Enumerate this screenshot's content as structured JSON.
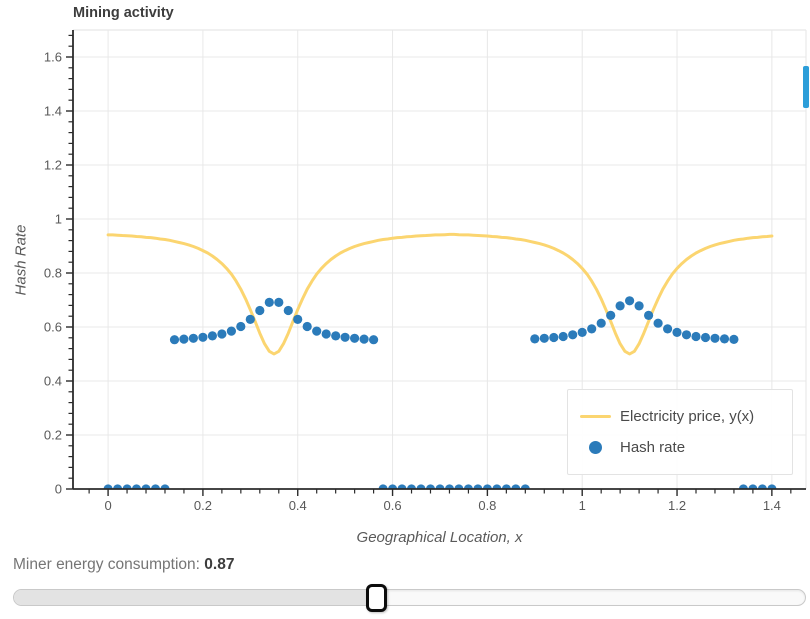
{
  "title": "Mining activity",
  "slider": {
    "label": "Miner energy consumption: ",
    "value": "0.87"
  },
  "colors": {
    "electricity_line": "#fbd570",
    "hash_dot": "#2b7bba",
    "scroll_indicator": "#2c9ed9",
    "grid": "#e8e8e8",
    "axis": "#2b2b2b",
    "tick_label": "#595959"
  },
  "chart_data": {
    "type": "line",
    "title": "Mining activity",
    "xlabel": "Geographical Location, x",
    "ylabel": "Hash Rate",
    "xlim": [
      -0.074,
      1.472
    ],
    "ylim": [
      0,
      1.7
    ],
    "grid": true,
    "x_ticks": {
      "values": [
        0,
        0.2,
        0.4,
        0.6,
        0.8,
        1,
        1.2,
        1.4
      ],
      "labels": [
        "0",
        "0.2",
        "0.4",
        "0.6",
        "0.8",
        "1",
        "1.2",
        "1.4"
      ]
    },
    "y_ticks": {
      "values": [
        0,
        0.2,
        0.4,
        0.6,
        0.8,
        1,
        1.2,
        1.4,
        1.6
      ],
      "labels": [
        "0",
        "0.2",
        "0.4",
        "0.6",
        "0.8",
        "1",
        "1.2",
        "1.4",
        "1.6"
      ]
    },
    "minor_tick_step": 0.04,
    "legend": {
      "position": "bottom-right",
      "entries": [
        {
          "label": "Electricity price, y(x)",
          "type": "line",
          "color": "#fbd570"
        },
        {
          "label": "Hash rate",
          "type": "circle",
          "color": "#2b7bba"
        }
      ]
    },
    "series": [
      {
        "name": "Electricity price, y(x)",
        "type": "line",
        "color": "#fbd570",
        "x_start": 0,
        "x_step": 0.01,
        "y": [
          0.941,
          0.941,
          0.94,
          0.939,
          0.938,
          0.937,
          0.935,
          0.934,
          0.932,
          0.931,
          0.929,
          0.926,
          0.924,
          0.921,
          0.917,
          0.913,
          0.909,
          0.904,
          0.898,
          0.891,
          0.883,
          0.874,
          0.863,
          0.85,
          0.835,
          0.817,
          0.796,
          0.77,
          0.74,
          0.704,
          0.664,
          0.621,
          0.577,
          0.538,
          0.51,
          0.5,
          0.51,
          0.538,
          0.577,
          0.621,
          0.664,
          0.704,
          0.74,
          0.77,
          0.796,
          0.817,
          0.835,
          0.85,
          0.863,
          0.874,
          0.883,
          0.891,
          0.898,
          0.904,
          0.909,
          0.913,
          0.917,
          0.921,
          0.924,
          0.926,
          0.929,
          0.931,
          0.932,
          0.934,
          0.935,
          0.937,
          0.938,
          0.939,
          0.94,
          0.941,
          0.941,
          0.942,
          0.943,
          0.943,
          0.942,
          0.941,
          0.941,
          0.94,
          0.939,
          0.938,
          0.937,
          0.935,
          0.934,
          0.932,
          0.931,
          0.929,
          0.926,
          0.924,
          0.921,
          0.917,
          0.913,
          0.909,
          0.904,
          0.898,
          0.891,
          0.883,
          0.874,
          0.863,
          0.85,
          0.835,
          0.817,
          0.796,
          0.77,
          0.74,
          0.704,
          0.664,
          0.621,
          0.577,
          0.538,
          0.51,
          0.5,
          0.51,
          0.538,
          0.577,
          0.621,
          0.664,
          0.704,
          0.74,
          0.77,
          0.796,
          0.817,
          0.835,
          0.85,
          0.863,
          0.874,
          0.883,
          0.891,
          0.898,
          0.904,
          0.909,
          0.913,
          0.917,
          0.921,
          0.924,
          0.926,
          0.929,
          0.931,
          0.932,
          0.934,
          0.935,
          0.937
        ]
      },
      {
        "name": "Hash rate",
        "type": "scatter",
        "color": "#2b7bba",
        "marker_radius": 4.6,
        "points": [
          [
            0.0,
            0
          ],
          [
            0.02,
            0
          ],
          [
            0.04,
            0
          ],
          [
            0.06,
            0
          ],
          [
            0.08,
            0
          ],
          [
            0.1,
            0
          ],
          [
            0.12,
            0
          ],
          [
            0.14,
            0.553
          ],
          [
            0.16,
            0.555
          ],
          [
            0.18,
            0.558
          ],
          [
            0.2,
            0.562
          ],
          [
            0.22,
            0.567
          ],
          [
            0.24,
            0.574
          ],
          [
            0.26,
            0.585
          ],
          [
            0.28,
            0.602
          ],
          [
            0.3,
            0.628
          ],
          [
            0.32,
            0.661
          ],
          [
            0.34,
            0.691
          ],
          [
            0.36,
            0.691
          ],
          [
            0.38,
            0.661
          ],
          [
            0.4,
            0.628
          ],
          [
            0.42,
            0.602
          ],
          [
            0.44,
            0.585
          ],
          [
            0.46,
            0.574
          ],
          [
            0.48,
            0.567
          ],
          [
            0.5,
            0.562
          ],
          [
            0.52,
            0.558
          ],
          [
            0.54,
            0.555
          ],
          [
            0.56,
            0.553
          ],
          [
            0.58,
            0
          ],
          [
            0.6,
            0
          ],
          [
            0.62,
            0
          ],
          [
            0.64,
            0
          ],
          [
            0.66,
            0
          ],
          [
            0.68,
            0
          ],
          [
            0.7,
            0
          ],
          [
            0.72,
            0
          ],
          [
            0.74,
            0
          ],
          [
            0.76,
            0
          ],
          [
            0.78,
            0
          ],
          [
            0.8,
            0
          ],
          [
            0.82,
            0
          ],
          [
            0.84,
            0
          ],
          [
            0.86,
            0
          ],
          [
            0.88,
            0
          ],
          [
            0.9,
            0.556
          ],
          [
            0.92,
            0.558
          ],
          [
            0.94,
            0.561
          ],
          [
            0.96,
            0.565
          ],
          [
            0.98,
            0.571
          ],
          [
            1.0,
            0.58
          ],
          [
            1.02,
            0.593
          ],
          [
            1.04,
            0.614
          ],
          [
            1.06,
            0.643
          ],
          [
            1.08,
            0.678
          ],
          [
            1.1,
            0.697
          ],
          [
            1.12,
            0.678
          ],
          [
            1.14,
            0.643
          ],
          [
            1.16,
            0.614
          ],
          [
            1.18,
            0.593
          ],
          [
            1.2,
            0.58
          ],
          [
            1.22,
            0.571
          ],
          [
            1.24,
            0.565
          ],
          [
            1.26,
            0.561
          ],
          [
            1.28,
            0.558
          ],
          [
            1.3,
            0.556
          ],
          [
            1.32,
            0.554
          ],
          [
            1.34,
            0
          ],
          [
            1.36,
            0
          ],
          [
            1.38,
            0
          ],
          [
            1.4,
            0
          ]
        ]
      }
    ]
  }
}
